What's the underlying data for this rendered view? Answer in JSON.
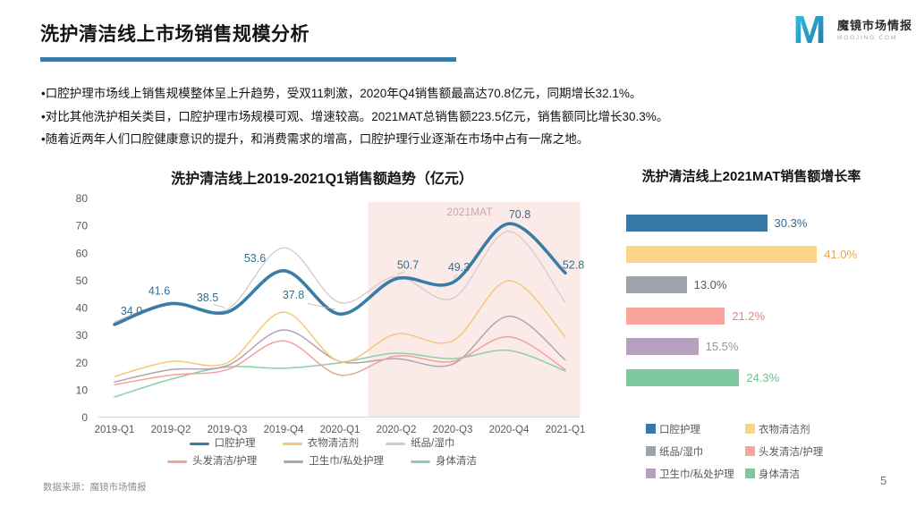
{
  "header": {
    "title": "洗护清洁线上市场销售规模分析"
  },
  "logo": {
    "mark": "M",
    "name": "魔镜市场情报",
    "domain": "MOOJING.COM"
  },
  "bullets": [
    "•口腔护理市场线上销售规模整体呈上升趋势，受双11刺激，2020年Q4销售额最高达70.8亿元，同期增长32.1%。",
    "•对比其他洗护相关类目，口腔护理市场规模可观、增速较高。2021MAT总销售额223.5亿元，销售额同比增长30.3%。",
    "•随着近两年人们口腔健康意识的提升，和消费需求的增高，口腔护理行业逐渐在市场中占有一席之地。"
  ],
  "footer": {
    "source": "数据来源：魔镜市场情报",
    "page": "5"
  },
  "colors": {
    "accent": "#3A7CA5",
    "highlight_fill": "#FBEBE8"
  },
  "chart_data": [
    {
      "type": "line",
      "title": "洗护清洁线上2019-2021Q1销售额趋势（亿元）",
      "categories": [
        "2019-Q1",
        "2019-Q2",
        "2019-Q3",
        "2019-Q4",
        "2020-Q1",
        "2020-Q2",
        "2020-Q3",
        "2020-Q4",
        "2021-Q1"
      ],
      "ylim": [
        0,
        80
      ],
      "yticks": [
        "0",
        "10",
        "20",
        "30",
        "40",
        "50",
        "60",
        "70",
        "80"
      ],
      "grid": false,
      "legend_position": "bottom",
      "highlight_region": {
        "label": "2021MAT",
        "from": "2020-Q2",
        "to": "2021-Q1",
        "color": "#FBEBE8",
        "label_color": "#C9A8A8"
      },
      "series": [
        {
          "name": "口腔护理",
          "color": "#3A7CA5",
          "label_color": "#31708F",
          "values": [
            34.0,
            41.6,
            38.5,
            53.6,
            37.8,
            50.7,
            49.3,
            70.8,
            52.8
          ],
          "labels": [
            "34.0",
            "41.6",
            "38.5",
            "53.6",
            "37.8",
            "50.7",
            "49.3",
            "70.8",
            "52.8"
          ]
        },
        {
          "name": "衣物清洁剂",
          "color": "#F5C878",
          "values": [
            15,
            20.5,
            20,
            38.5,
            20.5,
            30.5,
            28,
            50,
            29.5
          ]
        },
        {
          "name": "纸品/湿巾",
          "color": "#CFCCCB",
          "values": [
            35,
            42,
            39.5,
            62,
            42,
            51.5,
            43.5,
            68,
            42
          ]
        },
        {
          "name": "头发清洁/护理",
          "color": "#F2A19B",
          "values": [
            12,
            15.5,
            17.5,
            28,
            15.5,
            22.5,
            20.5,
            29.5,
            17.5
          ]
        },
        {
          "name": "卫生巾/私处护理",
          "color": "#B3A2B5",
          "values": [
            13,
            17.5,
            19,
            32,
            20.5,
            21.5,
            19.5,
            37,
            21
          ]
        },
        {
          "name": "身体清洁",
          "color": "#8CCFAC",
          "values": [
            7.5,
            14,
            18.5,
            18,
            20,
            23.5,
            21.5,
            24.5,
            17
          ]
        }
      ]
    },
    {
      "type": "bar",
      "orientation": "horizontal",
      "title": "洗护清洁线上2021MAT销售额增长率",
      "categories": [
        "口腔护理",
        "衣物清洁剂",
        "纸品/湿巾",
        "头发清洁/护理",
        "卫生巾/私处护理",
        "身体清洁"
      ],
      "values": [
        30.3,
        41.0,
        13.0,
        21.2,
        15.5,
        24.3
      ],
      "labels": [
        "30.3%",
        "41.0%",
        "13.0%",
        "21.2%",
        "15.5%",
        "24.3%"
      ],
      "colors": [
        "#3878A8",
        "#FAD489",
        "#9EA3AD",
        "#F9A59B",
        "#B6A0BE",
        "#7EC89E"
      ],
      "label_colors": [
        "#31688F",
        "#E2A952",
        "#595959",
        "#EE8277",
        "#9A94A0",
        "#74BD92"
      ],
      "xlim": [
        0,
        45
      ],
      "legend_position": "bottom"
    }
  ]
}
